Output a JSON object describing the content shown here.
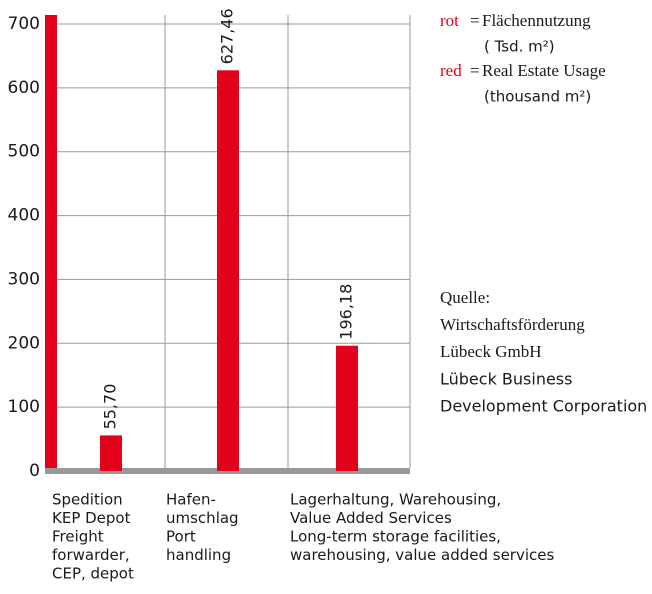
{
  "chart_data": {
    "type": "bar",
    "color": "#e2001a",
    "categories": [
      [
        "Spedition",
        "KEP Depot",
        "Freight",
        "forwarder,",
        "CEP, depot"
      ],
      [
        "Hafen-",
        "umschlag",
        "Port",
        "handling"
      ],
      [
        "Lagerhaltung, Warehousing,",
        "Value Added Services",
        "Long-term storage facilities,",
        "warehousing, value added services"
      ]
    ],
    "values": [
      55.7,
      627.46,
      196.18
    ],
    "value_labels": [
      "55,70",
      "627,46",
      "196,18"
    ],
    "ylim": [
      0,
      700
    ],
    "yticks": [
      0,
      100,
      200,
      300,
      400,
      500,
      600,
      700
    ],
    "grid": true,
    "legend": [
      {
        "key": "rot",
        "sep": "=",
        "lines": [
          "Flächennutzung",
          "( Tsd. m²)"
        ]
      },
      {
        "key": "red",
        "sep": "=",
        "lines": [
          "Real Estate Usage",
          "(thousand m²)"
        ]
      }
    ],
    "source": [
      "Quelle:",
      "Wirtschaftsförderung",
      "Lübeck GmbH",
      "Lübeck Business",
      "Development Corporation"
    ]
  }
}
